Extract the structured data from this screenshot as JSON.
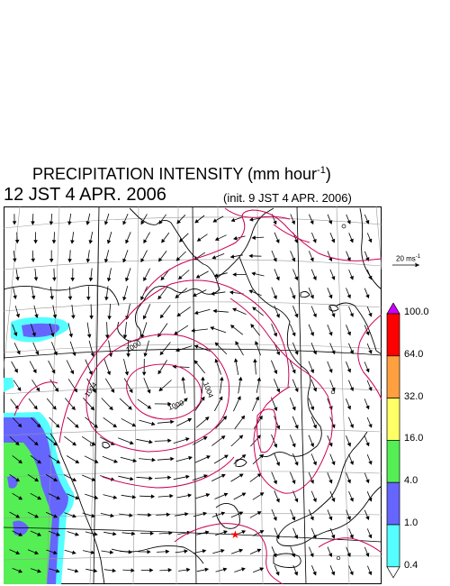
{
  "header": {
    "title_main": "PRECIPITATION INTENSITY (mm hour",
    "title_sup": "-1",
    "title_end": ")",
    "valid_time": "12 JST 4 APR. 2006",
    "init_time": "(init. 9 JST 4 APR. 2006)"
  },
  "wind_scale": {
    "label_main": "20 ms",
    "label_sup": "-1"
  },
  "isobars": {
    "low_center_label": "1000",
    "labels": [
      "1000",
      "1004",
      "1004"
    ]
  },
  "colorbar": {
    "levels": [
      "100.0",
      "64.0",
      "32.0",
      "16.0",
      "4.0",
      "1.0",
      "0.4"
    ],
    "colors": [
      "#cc00ff",
      "#ff0000",
      "#ffa040",
      "#ffff66",
      "#55ee55",
      "#6666ff",
      "#55ffff",
      "#ffffff"
    ]
  },
  "colors": {
    "isobar": "#cc0055",
    "coast": "#000000",
    "grid": "#999999",
    "marker": "#ff0000"
  }
}
